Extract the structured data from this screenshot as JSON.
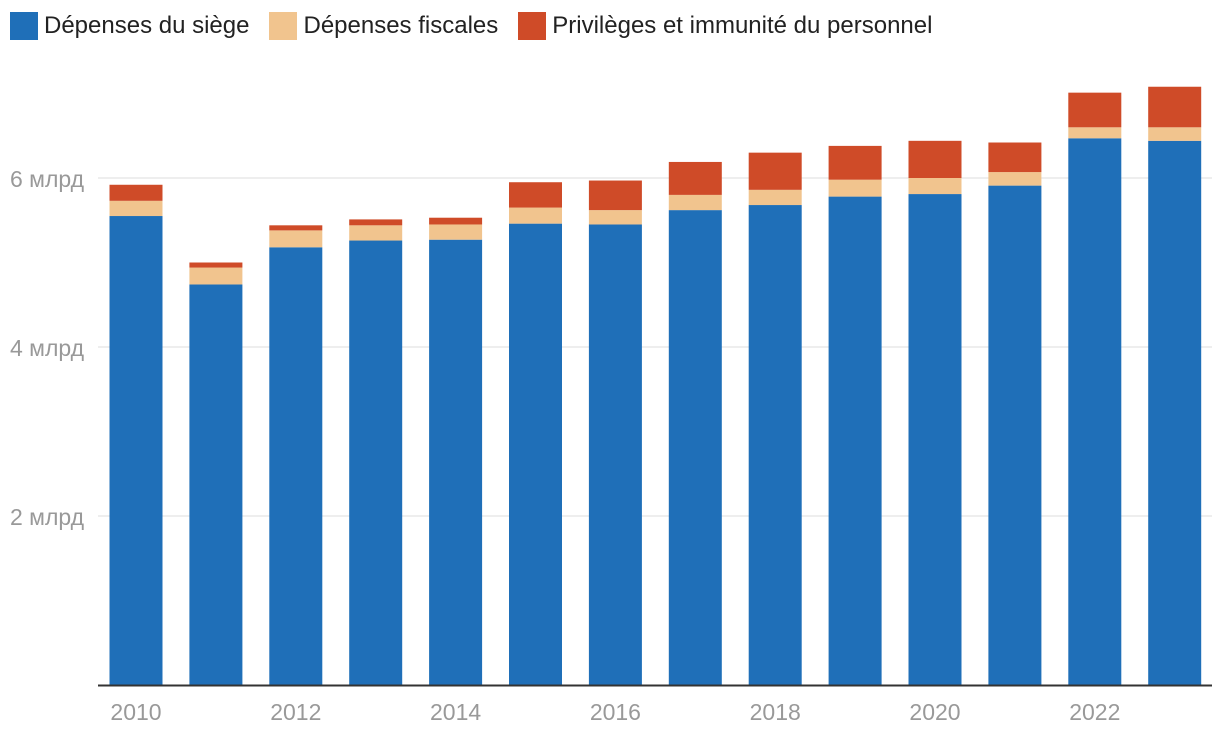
{
  "colors": {
    "siege": "#1f6fb8",
    "fiscales": "#f1c48e",
    "privileges": "#cf4b28",
    "grid": "#dddddd",
    "axis": "#333333",
    "tick_text": "#999999"
  },
  "legend": {
    "items": [
      {
        "label": "Dépenses du siège",
        "color": "#1f6fb8"
      },
      {
        "label": "Dépenses fiscales",
        "color": "#f1c48e"
      },
      {
        "label": "Privilèges et immunité du personnel",
        "color": "#cf4b28"
      }
    ]
  },
  "chart_data": {
    "type": "bar",
    "stacked": true,
    "title": "",
    "xlabel": "",
    "ylabel": "",
    "categories": [
      "2010",
      "2011",
      "2012",
      "2013",
      "2014",
      "2015",
      "2016",
      "2017",
      "2018",
      "2019",
      "2020",
      "2021",
      "2022",
      "2023"
    ],
    "x_tick_labels": [
      "2010",
      "",
      "2012",
      "",
      "2014",
      "",
      "2016",
      "",
      "2018",
      "",
      "2020",
      "",
      "2022",
      ""
    ],
    "series": [
      {
        "name": "Dépenses du siège",
        "color": "#1f6fb8",
        "values": [
          5.55,
          4.74,
          5.18,
          5.26,
          5.27,
          5.46,
          5.45,
          5.62,
          5.68,
          5.78,
          5.81,
          5.91,
          6.47,
          6.44
        ]
      },
      {
        "name": "Dépenses fiscales",
        "color": "#f1c48e",
        "values": [
          0.18,
          0.2,
          0.2,
          0.18,
          0.18,
          0.19,
          0.17,
          0.18,
          0.18,
          0.2,
          0.19,
          0.16,
          0.13,
          0.16
        ]
      },
      {
        "name": "Privilèges et immunité du personnel",
        "color": "#cf4b28",
        "values": [
          0.19,
          0.06,
          0.06,
          0.07,
          0.08,
          0.3,
          0.35,
          0.39,
          0.44,
          0.4,
          0.44,
          0.35,
          0.41,
          0.48
        ]
      }
    ],
    "ylim": [
      0,
      7.2
    ],
    "y_ticks": [
      {
        "value": 2,
        "label": "2 млрд"
      },
      {
        "value": 4,
        "label": "4 млрд"
      },
      {
        "value": 6,
        "label": "6 млрд"
      }
    ],
    "grid": true,
    "legend_position": "top-left"
  }
}
